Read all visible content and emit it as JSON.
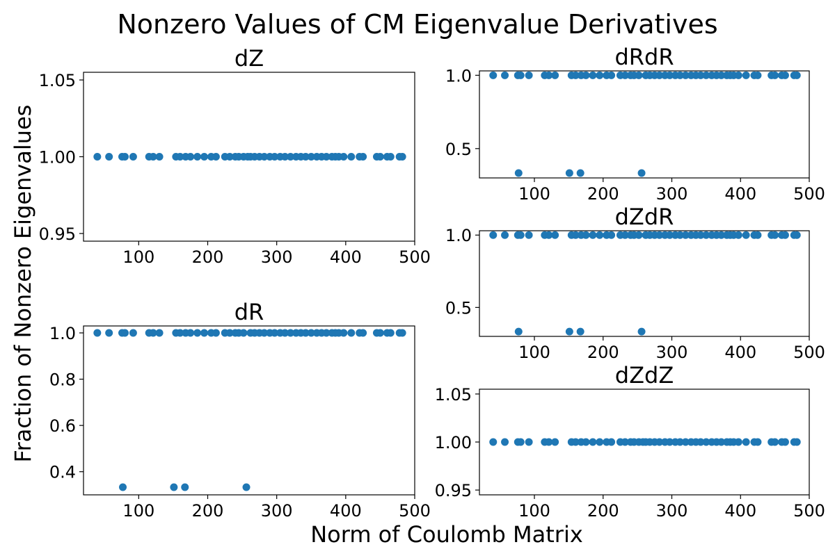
{
  "figure": {
    "title": "Nonzero Values of CM Eigenvalue Derivatives",
    "xlabel": "Norm of Coulomb Matrix",
    "ylabel": "Fraction of Nonzero Eigenvalues"
  },
  "style": {
    "marker_color": "#1f77b4"
  },
  "chart_data": [
    {
      "type": "scatter",
      "title": "dZ",
      "xlim": [
        20,
        500
      ],
      "ylim": [
        0.945,
        1.055
      ],
      "xticks": [
        100,
        200,
        300,
        400,
        500
      ],
      "xtick_labels": [
        "100",
        "200",
        "300",
        "400",
        "500"
      ],
      "yticks": [
        0.95,
        1.0,
        1.05
      ],
      "ytick_labels": [
        "0.95",
        "1.00",
        "1.05"
      ],
      "points": [
        [
          40,
          1.0
        ],
        [
          57,
          1.0
        ],
        [
          76,
          1.0
        ],
        [
          80,
          1.0
        ],
        [
          92,
          1.0
        ],
        [
          115,
          1.0
        ],
        [
          121,
          1.0
        ],
        [
          130,
          1.0
        ],
        [
          154,
          1.0
        ],
        [
          160,
          1.0
        ],
        [
          168,
          1.0
        ],
        [
          175,
          1.0
        ],
        [
          185,
          1.0
        ],
        [
          195,
          1.0
        ],
        [
          205,
          1.0
        ],
        [
          212,
          1.0
        ],
        [
          225,
          1.0
        ],
        [
          232,
          1.0
        ],
        [
          240,
          1.0
        ],
        [
          245,
          1.0
        ],
        [
          252,
          1.0
        ],
        [
          258,
          1.0
        ],
        [
          262,
          1.0
        ],
        [
          268,
          1.0
        ],
        [
          275,
          1.0
        ],
        [
          282,
          1.0
        ],
        [
          290,
          1.0
        ],
        [
          297,
          1.0
        ],
        [
          305,
          1.0
        ],
        [
          312,
          1.0
        ],
        [
          320,
          1.0
        ],
        [
          328,
          1.0
        ],
        [
          335,
          1.0
        ],
        [
          342,
          1.0
        ],
        [
          350,
          1.0
        ],
        [
          358,
          1.0
        ],
        [
          365,
          1.0
        ],
        [
          372,
          1.0
        ],
        [
          380,
          1.0
        ],
        [
          385,
          1.0
        ],
        [
          390,
          1.0
        ],
        [
          397,
          1.0
        ],
        [
          408,
          1.0
        ],
        [
          420,
          1.0
        ],
        [
          425,
          1.0
        ],
        [
          445,
          1.0
        ],
        [
          450,
          1.0
        ],
        [
          460,
          1.0
        ],
        [
          465,
          1.0
        ],
        [
          478,
          1.0
        ],
        [
          482,
          1.0
        ]
      ]
    },
    {
      "type": "scatter",
      "title": "dR",
      "xlim": [
        20,
        500
      ],
      "ylim": [
        0.3,
        1.03
      ],
      "xticks": [
        100,
        200,
        300,
        400,
        500
      ],
      "xtick_labels": [
        "100",
        "200",
        "300",
        "400",
        "500"
      ],
      "yticks": [
        0.4,
        0.6,
        0.8,
        1.0
      ],
      "ytick_labels": [
        "0.4",
        "0.6",
        "0.8",
        "1.0"
      ],
      "points": [
        [
          40,
          1.0
        ],
        [
          57,
          1.0
        ],
        [
          76,
          1.0
        ],
        [
          80,
          1.0
        ],
        [
          92,
          1.0
        ],
        [
          115,
          1.0
        ],
        [
          121,
          1.0
        ],
        [
          130,
          1.0
        ],
        [
          154,
          1.0
        ],
        [
          160,
          1.0
        ],
        [
          168,
          1.0
        ],
        [
          175,
          1.0
        ],
        [
          185,
          1.0
        ],
        [
          195,
          1.0
        ],
        [
          205,
          1.0
        ],
        [
          212,
          1.0
        ],
        [
          225,
          1.0
        ],
        [
          232,
          1.0
        ],
        [
          240,
          1.0
        ],
        [
          245,
          1.0
        ],
        [
          252,
          1.0
        ],
        [
          262,
          1.0
        ],
        [
          268,
          1.0
        ],
        [
          275,
          1.0
        ],
        [
          282,
          1.0
        ],
        [
          290,
          1.0
        ],
        [
          297,
          1.0
        ],
        [
          305,
          1.0
        ],
        [
          312,
          1.0
        ],
        [
          320,
          1.0
        ],
        [
          328,
          1.0
        ],
        [
          335,
          1.0
        ],
        [
          342,
          1.0
        ],
        [
          350,
          1.0
        ],
        [
          358,
          1.0
        ],
        [
          365,
          1.0
        ],
        [
          372,
          1.0
        ],
        [
          380,
          1.0
        ],
        [
          385,
          1.0
        ],
        [
          390,
          1.0
        ],
        [
          397,
          1.0
        ],
        [
          408,
          1.0
        ],
        [
          420,
          1.0
        ],
        [
          425,
          1.0
        ],
        [
          445,
          1.0
        ],
        [
          450,
          1.0
        ],
        [
          460,
          1.0
        ],
        [
          465,
          1.0
        ],
        [
          478,
          1.0
        ],
        [
          482,
          1.0
        ],
        [
          77,
          0.333
        ],
        [
          151,
          0.333
        ],
        [
          167,
          0.333
        ],
        [
          256,
          0.333
        ]
      ]
    },
    {
      "type": "scatter",
      "title": "dRdR",
      "xlim": [
        20,
        500
      ],
      "ylim": [
        0.3,
        1.03
      ],
      "xticks": [
        100,
        200,
        300,
        400,
        500
      ],
      "xtick_labels": [
        "100",
        "200",
        "300",
        "400",
        "500"
      ],
      "yticks": [
        0.5,
        1.0
      ],
      "ytick_labels": [
        "0.5",
        "1.0"
      ],
      "points": [
        [
          40,
          1.0
        ],
        [
          57,
          1.0
        ],
        [
          76,
          1.0
        ],
        [
          80,
          1.0
        ],
        [
          92,
          1.0
        ],
        [
          115,
          1.0
        ],
        [
          121,
          1.0
        ],
        [
          130,
          1.0
        ],
        [
          154,
          1.0
        ],
        [
          160,
          1.0
        ],
        [
          168,
          1.0
        ],
        [
          175,
          1.0
        ],
        [
          185,
          1.0
        ],
        [
          195,
          1.0
        ],
        [
          205,
          1.0
        ],
        [
          212,
          1.0
        ],
        [
          225,
          1.0
        ],
        [
          232,
          1.0
        ],
        [
          240,
          1.0
        ],
        [
          245,
          1.0
        ],
        [
          252,
          1.0
        ],
        [
          262,
          1.0
        ],
        [
          268,
          1.0
        ],
        [
          275,
          1.0
        ],
        [
          282,
          1.0
        ],
        [
          290,
          1.0
        ],
        [
          297,
          1.0
        ],
        [
          305,
          1.0
        ],
        [
          312,
          1.0
        ],
        [
          320,
          1.0
        ],
        [
          328,
          1.0
        ],
        [
          335,
          1.0
        ],
        [
          342,
          1.0
        ],
        [
          350,
          1.0
        ],
        [
          358,
          1.0
        ],
        [
          365,
          1.0
        ],
        [
          372,
          1.0
        ],
        [
          380,
          1.0
        ],
        [
          385,
          1.0
        ],
        [
          390,
          1.0
        ],
        [
          397,
          1.0
        ],
        [
          408,
          1.0
        ],
        [
          420,
          1.0
        ],
        [
          425,
          1.0
        ],
        [
          445,
          1.0
        ],
        [
          450,
          1.0
        ],
        [
          460,
          1.0
        ],
        [
          465,
          1.0
        ],
        [
          478,
          1.0
        ],
        [
          482,
          1.0
        ],
        [
          77,
          0.333
        ],
        [
          151,
          0.333
        ],
        [
          167,
          0.333
        ],
        [
          256,
          0.333
        ]
      ]
    },
    {
      "type": "scatter",
      "title": "dZdR",
      "xlim": [
        20,
        500
      ],
      "ylim": [
        0.3,
        1.03
      ],
      "xticks": [
        100,
        200,
        300,
        400,
        500
      ],
      "xtick_labels": [
        "100",
        "200",
        "300",
        "400",
        "500"
      ],
      "yticks": [
        0.5,
        1.0
      ],
      "ytick_labels": [
        "0.5",
        "1.0"
      ],
      "points": [
        [
          40,
          1.0
        ],
        [
          57,
          1.0
        ],
        [
          76,
          1.0
        ],
        [
          80,
          1.0
        ],
        [
          92,
          1.0
        ],
        [
          115,
          1.0
        ],
        [
          121,
          1.0
        ],
        [
          130,
          1.0
        ],
        [
          154,
          1.0
        ],
        [
          160,
          1.0
        ],
        [
          168,
          1.0
        ],
        [
          175,
          1.0
        ],
        [
          185,
          1.0
        ],
        [
          195,
          1.0
        ],
        [
          205,
          1.0
        ],
        [
          212,
          1.0
        ],
        [
          225,
          1.0
        ],
        [
          232,
          1.0
        ],
        [
          240,
          1.0
        ],
        [
          245,
          1.0
        ],
        [
          252,
          1.0
        ],
        [
          262,
          1.0
        ],
        [
          268,
          1.0
        ],
        [
          275,
          1.0
        ],
        [
          282,
          1.0
        ],
        [
          290,
          1.0
        ],
        [
          297,
          1.0
        ],
        [
          305,
          1.0
        ],
        [
          312,
          1.0
        ],
        [
          320,
          1.0
        ],
        [
          328,
          1.0
        ],
        [
          335,
          1.0
        ],
        [
          342,
          1.0
        ],
        [
          350,
          1.0
        ],
        [
          358,
          1.0
        ],
        [
          365,
          1.0
        ],
        [
          372,
          1.0
        ],
        [
          380,
          1.0
        ],
        [
          385,
          1.0
        ],
        [
          390,
          1.0
        ],
        [
          397,
          1.0
        ],
        [
          408,
          1.0
        ],
        [
          420,
          1.0
        ],
        [
          425,
          1.0
        ],
        [
          445,
          1.0
        ],
        [
          450,
          1.0
        ],
        [
          460,
          1.0
        ],
        [
          465,
          1.0
        ],
        [
          478,
          1.0
        ],
        [
          482,
          1.0
        ],
        [
          77,
          0.333
        ],
        [
          151,
          0.333
        ],
        [
          167,
          0.333
        ],
        [
          256,
          0.333
        ]
      ]
    },
    {
      "type": "scatter",
      "title": "dZdZ",
      "xlim": [
        20,
        500
      ],
      "ylim": [
        0.945,
        1.055
      ],
      "xticks": [
        100,
        200,
        300,
        400,
        500
      ],
      "xtick_labels": [
        "100",
        "200",
        "300",
        "400",
        "500"
      ],
      "yticks": [
        0.95,
        1.0,
        1.05
      ],
      "ytick_labels": [
        "0.95",
        "1.00",
        "1.05"
      ],
      "points": [
        [
          40,
          1.0
        ],
        [
          57,
          1.0
        ],
        [
          76,
          1.0
        ],
        [
          80,
          1.0
        ],
        [
          92,
          1.0
        ],
        [
          115,
          1.0
        ],
        [
          121,
          1.0
        ],
        [
          130,
          1.0
        ],
        [
          154,
          1.0
        ],
        [
          160,
          1.0
        ],
        [
          168,
          1.0
        ],
        [
          175,
          1.0
        ],
        [
          185,
          1.0
        ],
        [
          195,
          1.0
        ],
        [
          205,
          1.0
        ],
        [
          212,
          1.0
        ],
        [
          225,
          1.0
        ],
        [
          232,
          1.0
        ],
        [
          240,
          1.0
        ],
        [
          245,
          1.0
        ],
        [
          252,
          1.0
        ],
        [
          258,
          1.0
        ],
        [
          262,
          1.0
        ],
        [
          268,
          1.0
        ],
        [
          275,
          1.0
        ],
        [
          282,
          1.0
        ],
        [
          290,
          1.0
        ],
        [
          297,
          1.0
        ],
        [
          305,
          1.0
        ],
        [
          312,
          1.0
        ],
        [
          320,
          1.0
        ],
        [
          328,
          1.0
        ],
        [
          335,
          1.0
        ],
        [
          342,
          1.0
        ],
        [
          350,
          1.0
        ],
        [
          358,
          1.0
        ],
        [
          365,
          1.0
        ],
        [
          372,
          1.0
        ],
        [
          380,
          1.0
        ],
        [
          385,
          1.0
        ],
        [
          390,
          1.0
        ],
        [
          397,
          1.0
        ],
        [
          408,
          1.0
        ],
        [
          420,
          1.0
        ],
        [
          425,
          1.0
        ],
        [
          445,
          1.0
        ],
        [
          450,
          1.0
        ],
        [
          460,
          1.0
        ],
        [
          465,
          1.0
        ],
        [
          478,
          1.0
        ],
        [
          482,
          1.0
        ]
      ]
    }
  ]
}
